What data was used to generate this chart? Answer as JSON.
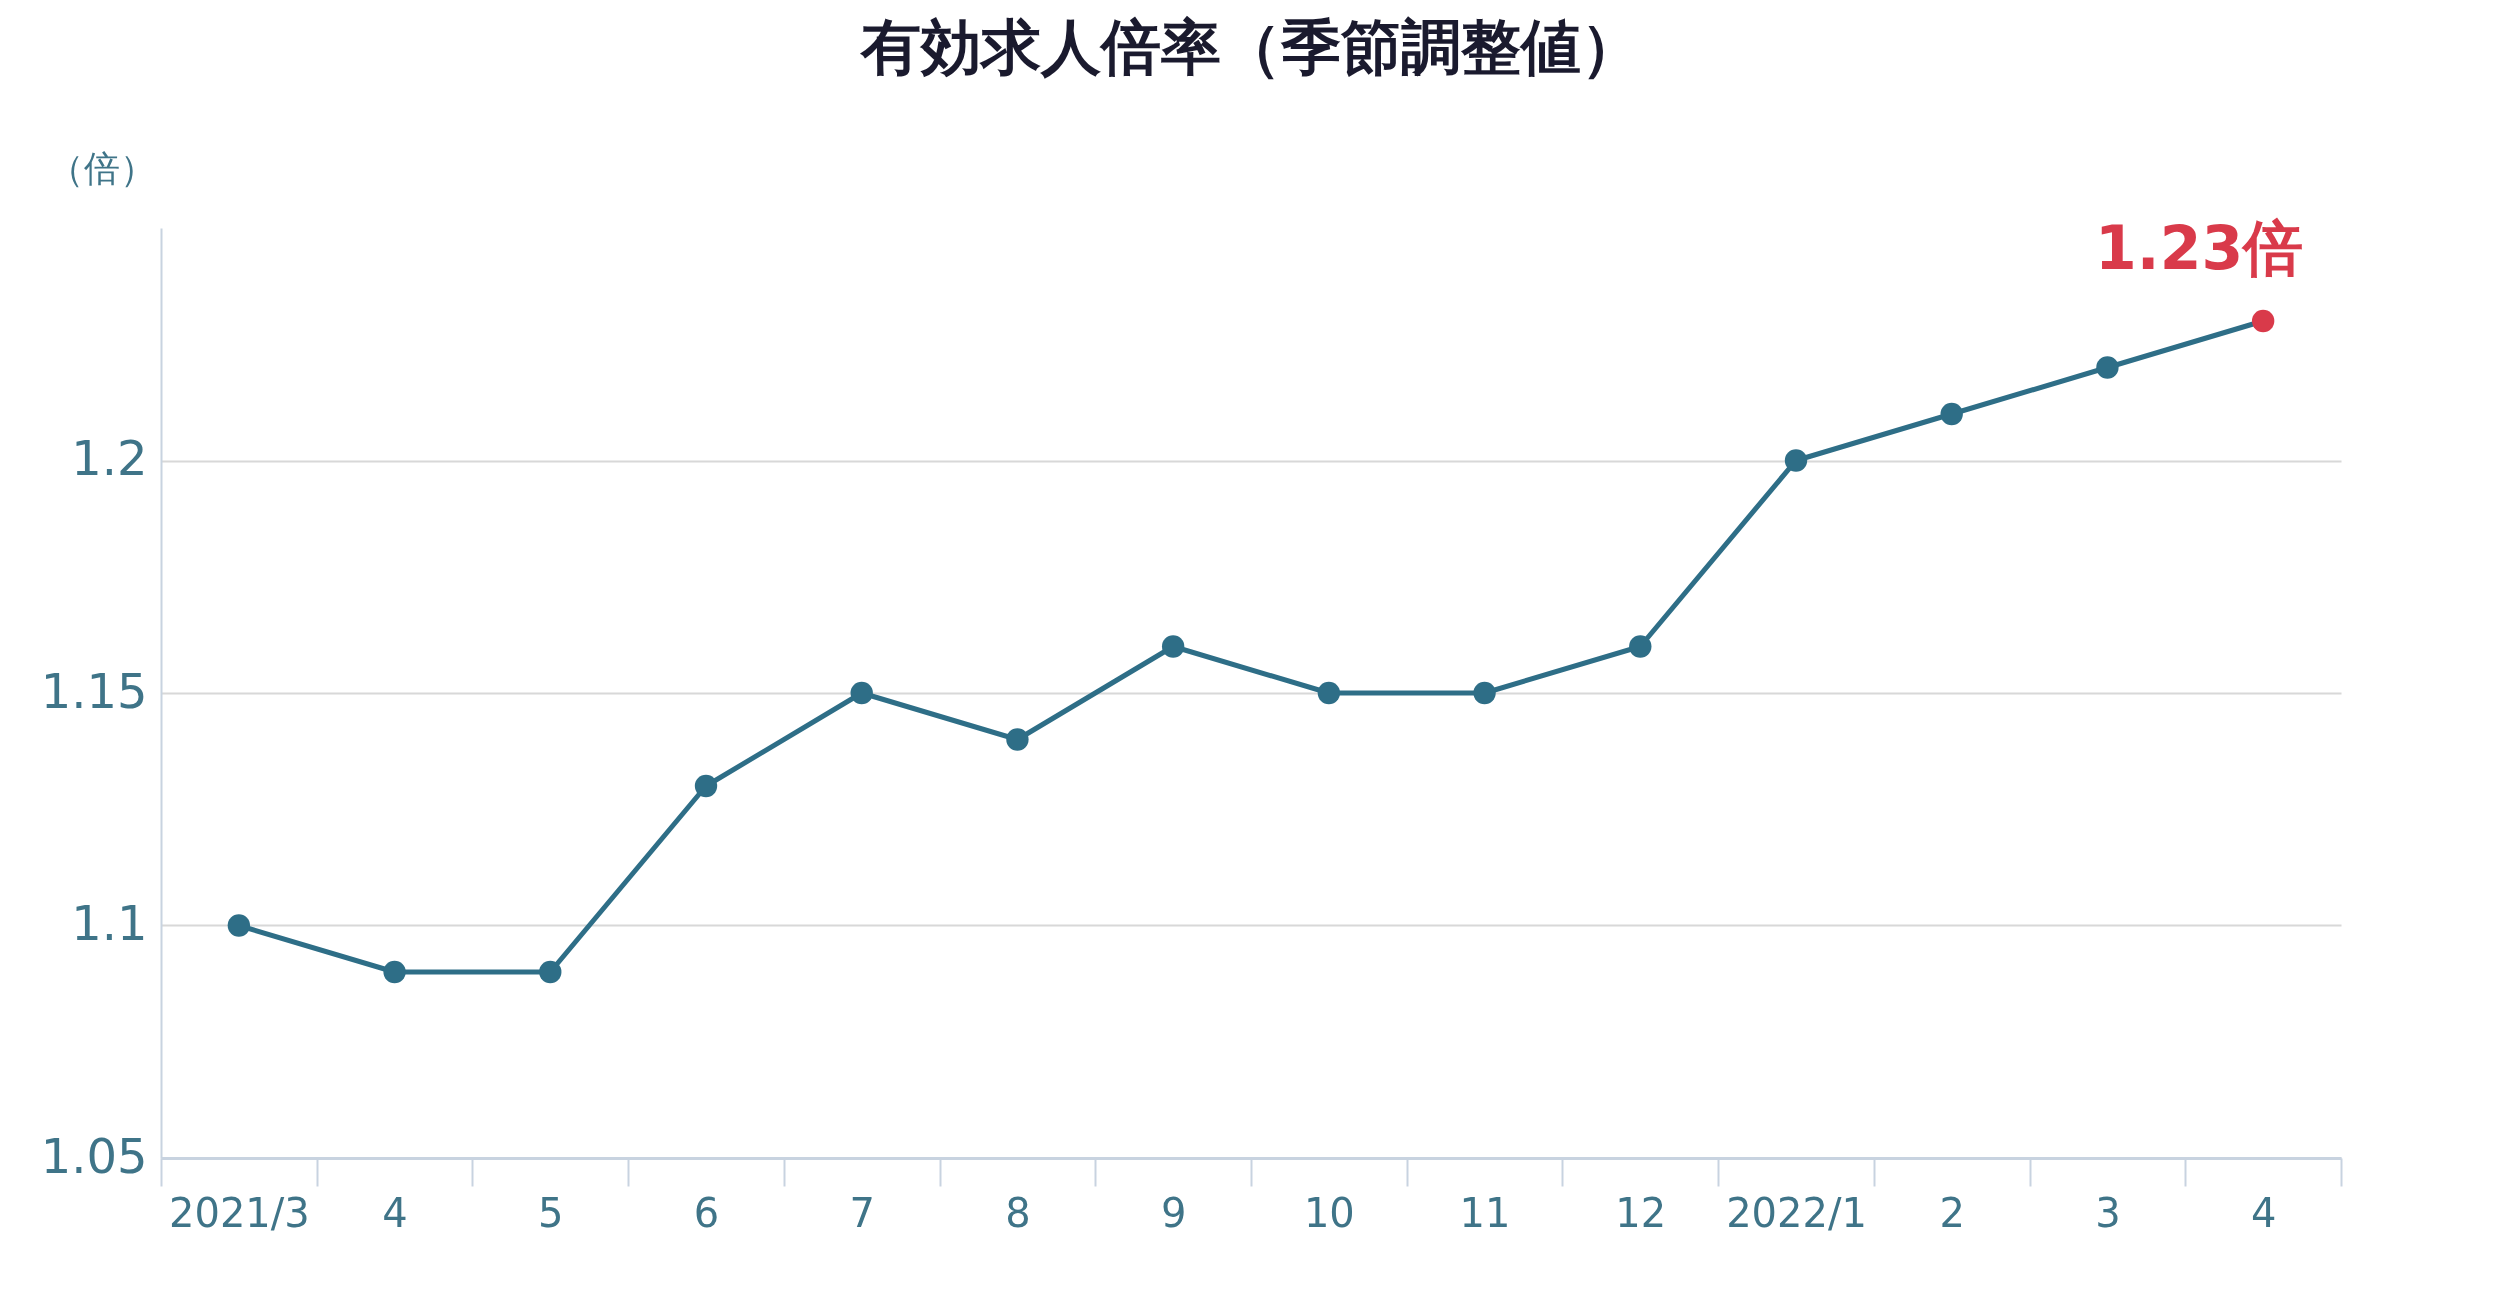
{
  "chart_data": {
    "type": "line",
    "title": "有効求人倍率（季節調整値）",
    "ylabel": "（倍）",
    "categories": [
      "2021/3",
      "4",
      "5",
      "6",
      "7",
      "8",
      "9",
      "10",
      "11",
      "12",
      "2022/1",
      "2",
      "3",
      "4"
    ],
    "series": [
      {
        "color": "#2e6e87",
        "values": [
          1.1,
          1.09,
          1.09,
          1.13,
          1.15,
          1.14,
          1.16,
          1.15,
          1.15,
          1.16,
          1.2,
          1.21,
          1.22,
          1.23
        ],
        "colors": [
          "#2e6e87",
          "#2e6e87",
          "#2e6e87",
          "#2e6e87",
          "#2e6e87",
          "#2e6e87",
          "#2e6e87",
          "#2e6e87",
          "#2e6e87",
          "#2e6e87",
          "#2e6e87",
          "#2e6e87",
          "#2e6e87",
          "#d93a4a"
        ],
        "value_labels": [
          null,
          null,
          null,
          null,
          null,
          null,
          null,
          null,
          null,
          null,
          null,
          null,
          null,
          "1.23倍"
        ]
      }
    ],
    "ylim": [
      1.05,
      1.25
    ],
    "yticks": [
      1.05,
      1.1,
      1.15,
      1.2
    ],
    "grid": "y",
    "marker": "circle",
    "line_style": "solid"
  }
}
